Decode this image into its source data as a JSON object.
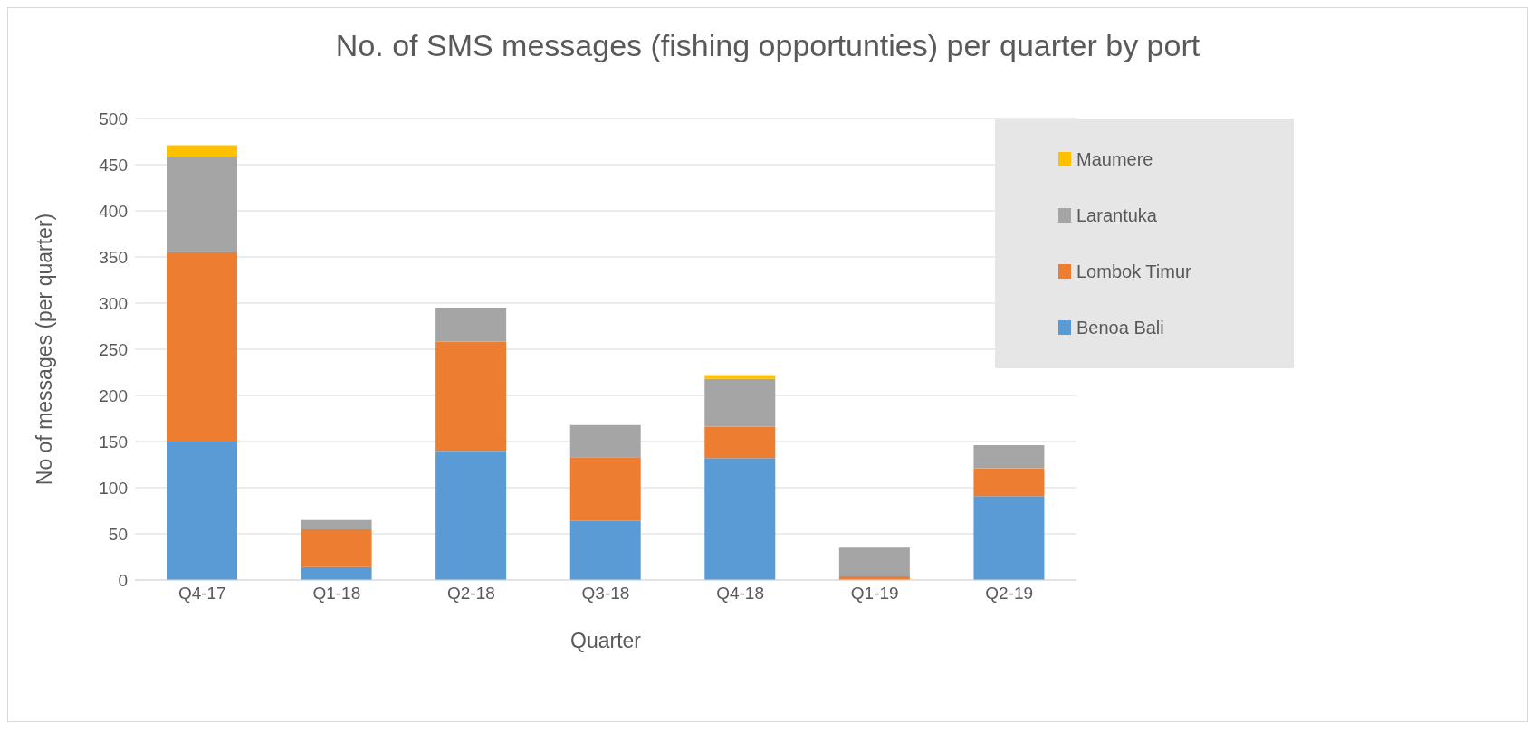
{
  "chart_data": {
    "type": "bar",
    "stacked": true,
    "title": "No. of SMS messages (fishing opportunties) per quarter by port",
    "xlabel": "Quarter",
    "ylabel": "No of messages (per quarter)",
    "categories": [
      "Q4-17",
      "Q1-18",
      "Q2-18",
      "Q3-18",
      "Q4-18",
      "Q1-19",
      "Q2-19"
    ],
    "series": [
      {
        "name": "Benoa Bali",
        "color": "#5b9bd5",
        "values": [
          150,
          14,
          140,
          64,
          132,
          0,
          91
        ]
      },
      {
        "name": "Lombok Timur",
        "color": "#ed7d31",
        "values": [
          205,
          41,
          118,
          69,
          34,
          4,
          30
        ]
      },
      {
        "name": "Larantuka",
        "color": "#a5a5a5",
        "values": [
          103,
          10,
          37,
          35,
          52,
          31,
          25
        ]
      },
      {
        "name": "Maumere",
        "color": "#ffc000",
        "values": [
          13,
          0,
          0,
          0,
          4,
          0,
          0
        ]
      }
    ],
    "ylim": [
      0,
      500
    ],
    "yticks": [
      0,
      50,
      100,
      150,
      200,
      250,
      300,
      350,
      400,
      450,
      500
    ],
    "grid": "y",
    "legend": "top right"
  }
}
